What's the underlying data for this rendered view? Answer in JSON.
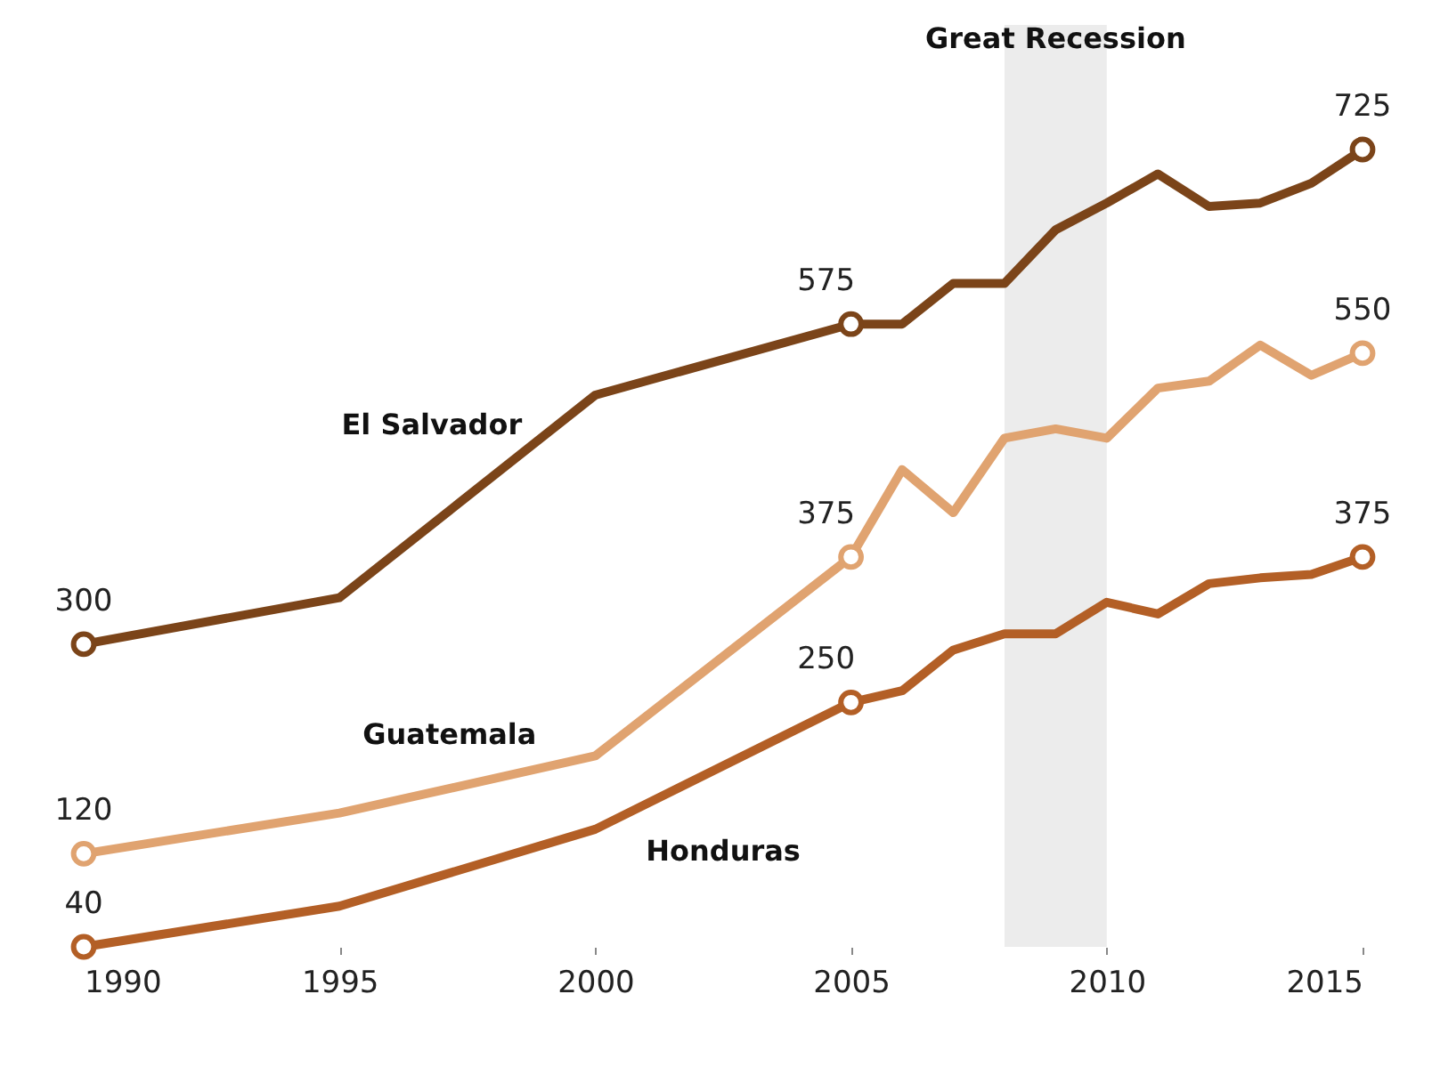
{
  "chart_data": {
    "type": "line",
    "x": [
      1990,
      1995,
      2000,
      2005,
      2006,
      2007,
      2008,
      2009,
      2010,
      2011,
      2012,
      2013,
      2014,
      2015
    ],
    "series": [
      {
        "name": "El Salvador",
        "color": "#7b4419",
        "values": [
          300,
          340,
          514,
          575,
          575,
          610,
          610,
          656,
          679,
          704,
          676,
          679,
          696,
          725
        ],
        "value_labels": [
          "300",
          null,
          null,
          "575",
          null,
          null,
          null,
          null,
          null,
          null,
          null,
          null,
          null,
          "725"
        ]
      },
      {
        "name": "Guatemala",
        "color": "#e0a370",
        "values": [
          120,
          155,
          204,
          375,
          450,
          413,
          477,
          485,
          477,
          520,
          526,
          557,
          531,
          550
        ],
        "value_labels": [
          "120",
          null,
          null,
          "375",
          null,
          null,
          null,
          null,
          null,
          null,
          null,
          null,
          null,
          "550"
        ]
      },
      {
        "name": "Honduras",
        "color": "#b35f26",
        "values": [
          40,
          75,
          141,
          250,
          260,
          295,
          309,
          309,
          336,
          326,
          352,
          357,
          360,
          375
        ],
        "value_labels": [
          "40",
          null,
          null,
          "250",
          null,
          null,
          null,
          null,
          null,
          null,
          null,
          null,
          null,
          "375"
        ]
      }
    ],
    "bands": [
      {
        "axis": "x",
        "from": 2008,
        "to": 2010,
        "label": "Great Recession",
        "color": "#ececec"
      }
    ],
    "xlim": [
      1990,
      2015
    ],
    "xticks": [
      1990,
      1995,
      2000,
      2005,
      2010,
      2015
    ],
    "grid": false,
    "line_style": "solid",
    "tick_labels": "x"
  }
}
